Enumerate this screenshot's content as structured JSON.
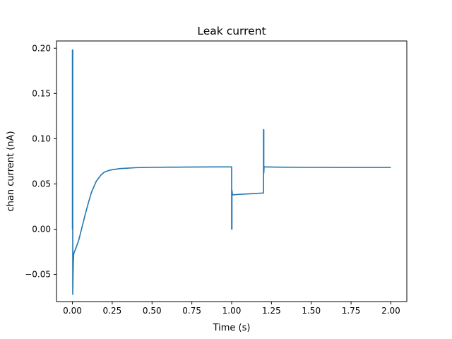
{
  "chart_data": {
    "type": "line",
    "title": "Leak current",
    "xlabel": "Time (s)",
    "ylabel": "chan current (nA)",
    "xlim": [
      -0.1,
      2.1
    ],
    "ylim": [
      -0.08,
      0.208
    ],
    "xticks": [
      0.0,
      0.25,
      0.5,
      0.75,
      1.0,
      1.25,
      1.5,
      1.75,
      2.0
    ],
    "xtick_labels": [
      "0.00",
      "0.25",
      "0.50",
      "0.75",
      "1.00",
      "1.25",
      "1.50",
      "1.75",
      "2.00"
    ],
    "yticks": [
      -0.05,
      0.0,
      0.05,
      0.1,
      0.15,
      0.2
    ],
    "ytick_labels": [
      "−0.05",
      "0.00",
      "0.05",
      "0.10",
      "0.15",
      "0.20"
    ],
    "grid": false,
    "line_color": "#1f77b4",
    "series": [
      {
        "x": [
          0.0,
          0.0,
          0.002,
          0.002,
          0.004,
          0.006,
          0.008,
          0.01,
          0.012,
          0.02,
          0.04,
          0.06,
          0.08,
          0.1,
          0.12,
          0.15,
          0.18,
          0.2,
          0.23,
          0.26,
          0.3,
          0.35,
          0.4,
          0.5,
          0.6,
          0.7,
          0.8,
          0.9,
          1.0,
          1.0,
          1.002,
          1.002,
          1.004,
          1.006,
          1.01,
          1.05,
          1.1,
          1.15,
          1.2,
          1.2,
          1.202,
          1.202,
          1.204,
          1.206,
          1.21,
          1.3,
          1.5,
          1.75,
          2.0
        ],
        "y": [
          0.0,
          0.198,
          0.198,
          -0.072,
          -0.05,
          -0.035,
          -0.028,
          -0.026,
          -0.025,
          -0.022,
          -0.012,
          0.002,
          0.016,
          0.029,
          0.041,
          0.053,
          0.06,
          0.063,
          0.065,
          0.066,
          0.067,
          0.0675,
          0.068,
          0.0683,
          0.0685,
          0.0686,
          0.0687,
          0.0688,
          0.0688,
          0.0,
          0.0,
          0.043,
          0.04,
          0.038,
          0.038,
          0.0385,
          0.039,
          0.0395,
          0.04,
          0.11,
          0.11,
          0.062,
          0.069,
          0.0688,
          0.0688,
          0.0685,
          0.0683,
          0.0682,
          0.0682
        ]
      }
    ]
  }
}
